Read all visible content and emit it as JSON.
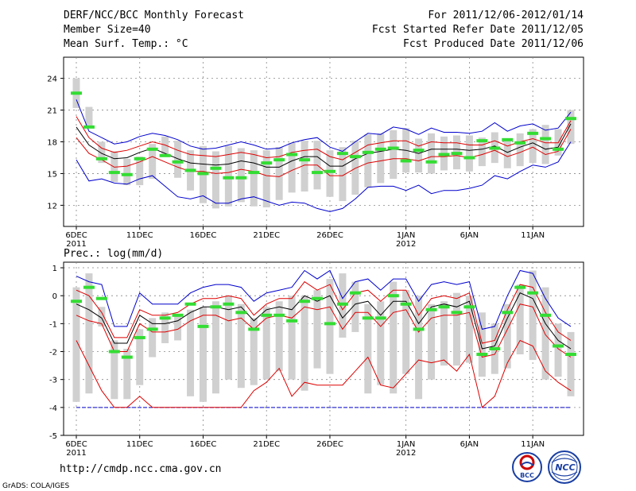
{
  "header": {
    "title": "DERF/NCC/BCC Monthly Forecast",
    "member_size": "Member Size=40",
    "variable": "Mean Surf. Temp.: °C",
    "period": "For 2011/12/06-2012/01/14",
    "start_date": "Fcst Started Refer Date 2011/12/05",
    "produced_date": "Fcst Produced Date 2011/12/06"
  },
  "precip_label": "Prec.: log(mm/d)",
  "url": "http://cmdp.ncc.cma.gov.cn",
  "credit": "GrADS: COLA/IGES",
  "logos": {
    "bcc": "BCC",
    "ncc": "NCC"
  },
  "colors": {
    "box": "#d0d0d0",
    "member": "#33dd33",
    "mean": "#000000",
    "spread": "#dd0000",
    "extreme": "#0000cc"
  },
  "chart_data": [
    {
      "type": "box",
      "title": "Mean Surf. Temp.: °C",
      "ylabel": "°C",
      "ylim": [
        10,
        26
      ],
      "yticks": [
        12,
        15,
        18,
        21,
        24
      ],
      "xtick_labels": [
        {
          "day": 0,
          "label": "6DEC",
          "year": "2011"
        },
        {
          "day": 5,
          "label": "11DEC"
        },
        {
          "day": 10,
          "label": "16DEC"
        },
        {
          "day": 15,
          "label": "21DEC"
        },
        {
          "day": 20,
          "label": "26DEC"
        },
        {
          "day": 26,
          "label": "1JAN",
          "year": "2012"
        },
        {
          "day": 31,
          "label": "6JAN"
        },
        {
          "day": 36,
          "label": "11JAN"
        }
      ],
      "box_low": [
        21.2,
        19.3,
        16.0,
        14.2,
        13.9,
        13.9,
        14.5,
        16.6,
        14.6,
        13.4,
        12.2,
        11.7,
        11.9,
        12.3,
        11.9,
        11.8,
        12.5,
        13.2,
        13.3,
        13.5,
        12.8,
        12.4,
        13.0,
        13.7,
        14.1,
        14.5,
        15.1,
        15.1,
        15.0,
        15.3,
        15.4,
        15.2,
        15.7,
        16.0,
        15.5,
        15.7,
        16.0,
        15.9,
        16.7,
        17.8
      ],
      "box_high": [
        24.0,
        21.3,
        18.0,
        17.1,
        16.4,
        16.6,
        17.8,
        18.5,
        18.1,
        17.2,
        17.6,
        17.1,
        17.6,
        17.4,
        17.2,
        17.2,
        17.5,
        17.9,
        18.1,
        18.1,
        17.2,
        17.5,
        18.1,
        18.7,
        18.8,
        19.1,
        19.3,
        18.3,
        18.8,
        18.5,
        18.6,
        18.6,
        18.4,
        18.9,
        18.1,
        18.8,
        19.2,
        19.6,
        19.2,
        21.0
      ],
      "marker": [
        22.6,
        19.4,
        16.4,
        15.1,
        14.9,
        16.4,
        17.3,
        16.7,
        16.1,
        15.3,
        15.0,
        15.5,
        14.6,
        14.6,
        15.1,
        16.0,
        16.3,
        16.8,
        16.3,
        15.1,
        15.2,
        16.9,
        16.6,
        17.0,
        17.3,
        17.4,
        16.2,
        17.2,
        16.1,
        16.8,
        16.9,
        16.5,
        18.1,
        17.4,
        18.2,
        17.9,
        18.8,
        18.3,
        17.3,
        20.2
      ],
      "upper_extreme": [
        22.0,
        19.0,
        18.4,
        17.8,
        18.0,
        18.5,
        18.8,
        18.6,
        18.2,
        17.6,
        17.3,
        17.4,
        17.7,
        18.0,
        17.7,
        17.3,
        17.4,
        17.9,
        18.2,
        18.4,
        17.5,
        17.1,
        18.0,
        18.8,
        18.7,
        19.4,
        19.2,
        18.7,
        19.3,
        18.9,
        18.9,
        18.8,
        19.0,
        19.8,
        19.0,
        19.5,
        19.7,
        19.1,
        19.3,
        20.8
      ],
      "upper_spread": [
        20.4,
        18.4,
        17.4,
        17.0,
        17.2,
        17.6,
        18.0,
        17.7,
        17.2,
        16.8,
        16.7,
        16.6,
        16.8,
        17.0,
        16.8,
        16.5,
        16.6,
        17.0,
        17.2,
        17.3,
        16.6,
        16.3,
        17.0,
        17.7,
        17.9,
        18.1,
        18.1,
        17.6,
        18.0,
        17.9,
        17.9,
        17.7,
        17.7,
        18.1,
        17.6,
        18.0,
        18.3,
        17.9,
        17.9,
        20.0
      ],
      "mean": [
        19.4,
        17.7,
        16.9,
        16.4,
        16.5,
        17.0,
        17.4,
        16.9,
        16.4,
        16.0,
        15.9,
        15.8,
        15.9,
        16.2,
        16.0,
        15.6,
        15.6,
        16.2,
        16.6,
        16.6,
        15.7,
        15.7,
        16.4,
        16.9,
        17.1,
        17.3,
        17.2,
        16.9,
        17.3,
        17.3,
        17.3,
        17.2,
        17.3,
        17.6,
        17.0,
        17.5,
        17.9,
        17.3,
        17.5,
        19.7
      ],
      "lower_spread": [
        18.4,
        16.9,
        16.3,
        15.6,
        15.7,
        16.1,
        16.6,
        16.1,
        15.6,
        15.2,
        15.2,
        15.0,
        15.1,
        15.4,
        15.2,
        14.8,
        14.7,
        15.3,
        15.8,
        15.8,
        14.8,
        14.8,
        15.5,
        16.0,
        16.2,
        16.4,
        16.4,
        16.2,
        16.6,
        16.6,
        16.7,
        16.5,
        16.8,
        17.2,
        16.6,
        17.0,
        17.5,
        16.8,
        17.1,
        19.2
      ],
      "lower_extreme": [
        16.3,
        14.3,
        14.5,
        14.1,
        14.0,
        14.5,
        14.8,
        13.8,
        12.8,
        12.6,
        12.9,
        12.2,
        12.2,
        12.6,
        12.8,
        12.4,
        12.0,
        12.3,
        12.2,
        11.7,
        11.4,
        11.7,
        12.6,
        13.7,
        13.8,
        13.8,
        13.4,
        13.9,
        13.1,
        13.4,
        13.4,
        13.6,
        13.9,
        14.8,
        14.5,
        15.2,
        15.8,
        15.6,
        16.1,
        18.0
      ]
    },
    {
      "type": "box",
      "title": "Prec.: log(mm/d)",
      "ylabel": "log(mm/d)",
      "ylim": [
        -5,
        1.2
      ],
      "yticks": [
        -5,
        -4,
        -3,
        -2,
        -1,
        0,
        1
      ],
      "xtick_labels": [
        {
          "day": 0,
          "label": "6DEC",
          "year": "2011"
        },
        {
          "day": 5,
          "label": "11DEC"
        },
        {
          "day": 10,
          "label": "16DEC"
        },
        {
          "day": 15,
          "label": "21DEC"
        },
        {
          "day": 20,
          "label": "26DEC"
        },
        {
          "day": 26,
          "label": "1JAN",
          "year": "2012"
        },
        {
          "day": 31,
          "label": "6JAN"
        },
        {
          "day": 36,
          "label": "11JAN"
        }
      ],
      "box_low": [
        -3.8,
        -3.5,
        -1.1,
        -3.7,
        -3.7,
        -3.2,
        -2.2,
        -1.7,
        -1.6,
        -3.6,
        -3.8,
        -3.5,
        -3.0,
        -3.3,
        -3.2,
        -3.0,
        -2.7,
        -3.0,
        -3.4,
        -2.6,
        -2.8,
        -1.5,
        -1.3,
        -3.5,
        -3.2,
        -3.5,
        -2.8,
        -3.7,
        -3.0,
        -2.5,
        -2.5,
        -2.4,
        -2.9,
        -2.8,
        -2.6,
        -2.1,
        -2.3,
        -3.0,
        -2.9,
        -3.6
      ],
      "box_high": [
        0.3,
        0.8,
        -0.4,
        -1.6,
        -1.9,
        -1.2,
        -0.8,
        -0.6,
        -0.7,
        -0.5,
        -0.4,
        -0.2,
        0.0,
        -0.3,
        -0.8,
        -0.4,
        -0.2,
        0.0,
        0.0,
        0.2,
        0.6,
        0.8,
        0.5,
        -0.3,
        -0.2,
        0.5,
        0.2,
        0.0,
        -0.3,
        -0.2,
        0.1,
        0.0,
        -0.6,
        -1.0,
        -0.3,
        0.4,
        0.9,
        0.3,
        -1.0,
        -1.3
      ],
      "marker": [
        -0.2,
        0.3,
        -0.1,
        -2.0,
        -2.2,
        -1.5,
        -1.2,
        -0.8,
        -0.7,
        -0.3,
        -1.1,
        -0.4,
        -0.3,
        -0.6,
        -1.2,
        -0.7,
        -0.7,
        -0.9,
        -0.2,
        -0.1,
        -1.0,
        -0.3,
        0.1,
        -0.8,
        -0.8,
        0.0,
        -0.3,
        -1.2,
        -0.5,
        -0.4,
        -0.6,
        -0.4,
        -2.1,
        -1.9,
        -0.6,
        0.3,
        0.1,
        -0.7,
        -1.8,
        -2.1
      ],
      "upper_extreme": [
        0.7,
        0.5,
        0.4,
        -1.1,
        -1.1,
        0.1,
        -0.3,
        -0.3,
        -0.3,
        0.1,
        0.3,
        0.4,
        0.4,
        0.3,
        -0.2,
        0.1,
        0.2,
        0.3,
        0.9,
        0.6,
        0.9,
        -0.1,
        0.5,
        0.6,
        0.2,
        0.6,
        0.6,
        -0.2,
        0.4,
        0.5,
        0.4,
        0.5,
        -1.2,
        -1.1,
        0.0,
        0.9,
        0.8,
        -0.1,
        -0.8,
        -1.1
      ],
      "upper_spread": [
        0.2,
        0.0,
        -0.6,
        -1.5,
        -1.5,
        -0.5,
        -0.7,
        -0.7,
        -0.6,
        -0.3,
        -0.1,
        -0.1,
        0.0,
        -0.1,
        -0.7,
        -0.3,
        -0.1,
        -0.1,
        0.5,
        0.2,
        0.4,
        -0.5,
        0.1,
        0.2,
        -0.2,
        0.2,
        0.2,
        -0.7,
        -0.1,
        0.0,
        -0.1,
        0.1,
        -1.7,
        -1.6,
        -0.5,
        0.4,
        0.3,
        -0.6,
        -1.3,
        -1.6
      ],
      "mean": [
        -0.3,
        -0.5,
        -0.8,
        -1.7,
        -1.7,
        -0.7,
        -1.0,
        -1.0,
        -0.9,
        -0.6,
        -0.4,
        -0.4,
        -0.5,
        -0.4,
        -0.9,
        -0.5,
        -0.4,
        -0.5,
        0.0,
        -0.2,
        0.0,
        -0.8,
        -0.3,
        -0.2,
        -0.7,
        -0.2,
        -0.2,
        -1.0,
        -0.4,
        -0.3,
        -0.4,
        -0.2,
        -1.9,
        -1.8,
        -0.8,
        0.1,
        -0.1,
        -1.0,
        -1.6,
        -1.9
      ],
      "lower_spread": [
        -0.7,
        -0.9,
        -1.0,
        -2.0,
        -2.0,
        -1.0,
        -1.3,
        -1.3,
        -1.2,
        -0.9,
        -0.7,
        -0.7,
        -0.9,
        -0.8,
        -1.2,
        -0.8,
        -0.7,
        -0.8,
        -0.4,
        -0.5,
        -0.4,
        -1.2,
        -0.6,
        -0.6,
        -1.1,
        -0.6,
        -0.5,
        -1.3,
        -0.8,
        -0.7,
        -0.7,
        -0.6,
        -2.2,
        -2.1,
        -1.2,
        -0.3,
        -0.4,
        -1.4,
        -1.9,
        -2.2
      ],
      "lower_extreme": [
        -1.6,
        -2.5,
        -3.4,
        -4.0,
        -4.0,
        -3.6,
        -4.0,
        -4.0,
        -4.0,
        -4.0,
        -4.0,
        -4.0,
        -4.0,
        -4.0,
        -3.4,
        -3.1,
        -2.6,
        -3.6,
        -3.1,
        -3.2,
        -3.2,
        -3.2,
        -2.7,
        -2.2,
        -3.2,
        -3.3,
        -2.8,
        -2.3,
        -2.4,
        -2.3,
        -2.7,
        -2.1,
        -4.0,
        -3.6,
        -2.4,
        -1.6,
        -1.8,
        -2.7,
        -3.1,
        -3.4
      ],
      "floor_line": -4
    }
  ]
}
